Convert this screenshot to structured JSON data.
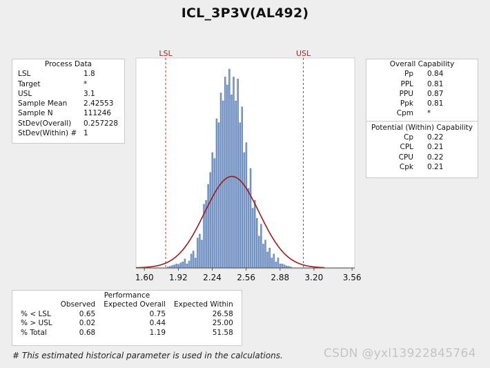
{
  "title": "ICL_3P3V(AL492)",
  "process_data": {
    "title": "Process Data",
    "rows": [
      {
        "label": "LSL",
        "value": "1.8"
      },
      {
        "label": "Target",
        "value": "*"
      },
      {
        "label": "USL",
        "value": "3.1"
      },
      {
        "label": "Sample Mean",
        "value": "2.42553"
      },
      {
        "label": "Sample N",
        "value": "111246"
      },
      {
        "label": "StDev(Overall)",
        "value": "0.257228"
      },
      {
        "label": "StDev(Within) #",
        "value": "1"
      }
    ]
  },
  "overall_capability": {
    "title": "Overall Capability",
    "rows": [
      {
        "label": "Pp",
        "value": "0.84"
      },
      {
        "label": "PPL",
        "value": "0.81"
      },
      {
        "label": "PPU",
        "value": "0.87"
      },
      {
        "label": "Ppk",
        "value": "0.81"
      },
      {
        "label": "Cpm",
        "value": "*"
      }
    ]
  },
  "within_capability": {
    "title": "Potential (Within) Capability",
    "rows": [
      {
        "label": "Cp",
        "value": "0.22"
      },
      {
        "label": "CPL",
        "value": "0.21"
      },
      {
        "label": "CPU",
        "value": "0.22"
      },
      {
        "label": "Cpk",
        "value": "0.21"
      }
    ]
  },
  "performance": {
    "title": "Performance",
    "headers": [
      "",
      "Observed",
      "Expected Overall",
      "Expected Within"
    ],
    "rows": [
      [
        "% < LSL",
        "0.65",
        "0.75",
        "26.58"
      ],
      [
        "% > USL",
        "0.02",
        "0.44",
        "25.00"
      ],
      [
        "% Total",
        "0.68",
        "1.19",
        "51.58"
      ]
    ]
  },
  "footnote": "# This estimated historical parameter is used in the calculations.",
  "watermark": "CSDN @yxl13922845764",
  "colors": {
    "bar_fill": "#7f9fcf",
    "bar_stroke": "#4a6fa8",
    "curve": "#a01818",
    "spec_line": "#c03030",
    "spec_label": "#a02828"
  },
  "chart_data": {
    "type": "bar",
    "title": "ICL_3P3V(AL492)",
    "xlabel": "",
    "ylabel": "",
    "xlim": [
      1.52,
      3.585
    ],
    "ylim": [
      0,
      1.0
    ],
    "grid": false,
    "x_ticks": [
      1.6,
      1.92,
      2.24,
      2.56,
      2.88,
      3.2,
      3.56
    ],
    "x_tick_labels": [
      "1.60",
      "1.92",
      "2.24",
      "2.56",
      "2.88",
      "3.20",
      "3.56"
    ],
    "spec_limits": [
      {
        "name": "LSL",
        "value": 1.8
      },
      {
        "name": "USL",
        "value": 3.1
      }
    ],
    "histogram": {
      "bin_width": 0.0195,
      "bins": [
        {
          "x": 1.825,
          "y": 0.005
        },
        {
          "x": 1.845,
          "y": 0.008
        },
        {
          "x": 1.865,
          "y": 0.012
        },
        {
          "x": 1.885,
          "y": 0.015
        },
        {
          "x": 1.905,
          "y": 0.02
        },
        {
          "x": 1.925,
          "y": 0.018
        },
        {
          "x": 1.945,
          "y": 0.025
        },
        {
          "x": 1.965,
          "y": 0.03
        },
        {
          "x": 1.985,
          "y": 0.045
        },
        {
          "x": 2.005,
          "y": 0.02
        },
        {
          "x": 2.025,
          "y": 0.035
        },
        {
          "x": 2.045,
          "y": 0.07
        },
        {
          "x": 2.065,
          "y": 0.085
        },
        {
          "x": 2.085,
          "y": 0.05
        },
        {
          "x": 2.105,
          "y": 0.15
        },
        {
          "x": 2.125,
          "y": 0.17
        },
        {
          "x": 2.145,
          "y": 0.14
        },
        {
          "x": 2.165,
          "y": 0.32
        },
        {
          "x": 2.185,
          "y": 0.34
        },
        {
          "x": 2.205,
          "y": 0.42
        },
        {
          "x": 2.225,
          "y": 0.48
        },
        {
          "x": 2.245,
          "y": 0.58
        },
        {
          "x": 2.265,
          "y": 0.55
        },
        {
          "x": 2.285,
          "y": 0.75
        },
        {
          "x": 2.305,
          "y": 0.73
        },
        {
          "x": 2.325,
          "y": 0.88
        },
        {
          "x": 2.345,
          "y": 0.84
        },
        {
          "x": 2.365,
          "y": 0.96
        },
        {
          "x": 2.385,
          "y": 0.92
        },
        {
          "x": 2.405,
          "y": 1.0
        },
        {
          "x": 2.425,
          "y": 0.87
        },
        {
          "x": 2.445,
          "y": 0.96
        },
        {
          "x": 2.465,
          "y": 0.84
        },
        {
          "x": 2.485,
          "y": 0.95
        },
        {
          "x": 2.505,
          "y": 0.73
        },
        {
          "x": 2.525,
          "y": 0.81
        },
        {
          "x": 2.545,
          "y": 0.58
        },
        {
          "x": 2.565,
          "y": 0.63
        },
        {
          "x": 2.585,
          "y": 0.4
        },
        {
          "x": 2.605,
          "y": 0.5
        },
        {
          "x": 2.625,
          "y": 0.3
        },
        {
          "x": 2.645,
          "y": 0.34
        },
        {
          "x": 2.665,
          "y": 0.25
        },
        {
          "x": 2.685,
          "y": 0.16
        },
        {
          "x": 2.705,
          "y": 0.22
        },
        {
          "x": 2.725,
          "y": 0.12
        },
        {
          "x": 2.745,
          "y": 0.14
        },
        {
          "x": 2.765,
          "y": 0.08
        },
        {
          "x": 2.785,
          "y": 0.1
        },
        {
          "x": 2.805,
          "y": 0.05
        },
        {
          "x": 2.825,
          "y": 0.07
        },
        {
          "x": 2.845,
          "y": 0.03
        },
        {
          "x": 2.865,
          "y": 0.05
        },
        {
          "x": 2.885,
          "y": 0.02
        },
        {
          "x": 2.905,
          "y": 0.02
        },
        {
          "x": 2.925,
          "y": 0.015
        },
        {
          "x": 2.945,
          "y": 0.01
        },
        {
          "x": 2.965,
          "y": 0.008
        },
        {
          "x": 2.985,
          "y": 0.005
        }
      ]
    },
    "fit_curve": {
      "type": "normal",
      "mean": 2.42553,
      "stdev": 0.257228,
      "peak": 0.46,
      "range": [
        1.52,
        3.3
      ]
    }
  }
}
